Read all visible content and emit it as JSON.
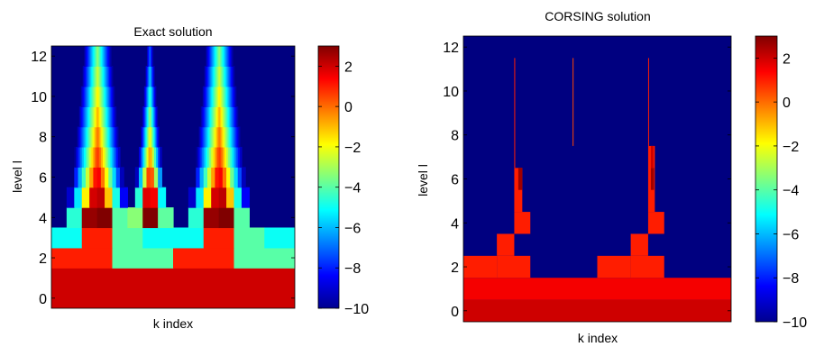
{
  "chart_data": [
    {
      "type": "heatmap",
      "title": "Exact solution",
      "xlabel": "k index",
      "ylabel": "level l",
      "ylim": [
        -0.5,
        12.5
      ],
      "yticks": [
        0,
        2,
        4,
        6,
        8,
        10,
        12
      ],
      "colorbar": {
        "range": [
          -10,
          3
        ],
        "ticks": [
          2,
          0,
          -2,
          -4,
          -6,
          -8,
          -10
        ],
        "tick_labels": [
          "2",
          "0",
          "−2",
          "−4",
          "−6",
          "−8",
          "−10"
        ]
      },
      "levels": [
        {
          "l": 0,
          "segments": [
            {
              "k0": 0,
              "k1": 1,
              "v": 2.0
            }
          ]
        },
        {
          "l": 1,
          "segments": [
            {
              "k0": 0,
              "k1": 1,
              "v": 2.0
            }
          ]
        },
        {
          "l": 2,
          "segments": [
            {
              "k0": 0,
              "k1": 0.25,
              "v": 1.0
            },
            {
              "k0": 0.25,
              "k1": 0.5,
              "v": -4.0
            },
            {
              "k0": 0.5,
              "k1": 0.75,
              "v": 1.0
            },
            {
              "k0": 0.75,
              "k1": 1,
              "v": -4.0
            }
          ]
        },
        {
          "l": 3,
          "segments": [
            {
              "k0": 0,
              "k1": 0.125,
              "v": -5.0
            },
            {
              "k0": 0.125,
              "k1": 0.25,
              "v": 1.0
            },
            {
              "k0": 0.25,
              "k1": 0.375,
              "v": -4.0
            },
            {
              "k0": 0.375,
              "k1": 0.5,
              "v": -5.0
            },
            {
              "k0": 0.5,
              "k1": 0.625,
              "v": -5.0
            },
            {
              "k0": 0.625,
              "k1": 0.75,
              "v": 1.0
            },
            {
              "k0": 0.75,
              "k1": 0.875,
              "v": -4.0
            },
            {
              "k0": 0.875,
              "k1": 1,
              "v": -5.0
            }
          ]
        }
      ],
      "peaks": [
        0.19,
        0.405,
        0.69
      ]
    },
    {
      "type": "heatmap",
      "title": "CORSING solution",
      "xlabel": "k index",
      "ylabel": "level l",
      "ylim": [
        -0.5,
        12.5
      ],
      "yticks": [
        0,
        2,
        4,
        6,
        8,
        10,
        12
      ],
      "colorbar": {
        "range": [
          -10,
          3
        ],
        "ticks": [
          2,
          0,
          -2,
          -4,
          -6,
          -8,
          -10
        ],
        "tick_labels": [
          "2",
          "0",
          "−2",
          "−4",
          "−6",
          "−8",
          "−10"
        ]
      },
      "background_value": -10,
      "cells": [
        {
          "l0": -0.5,
          "l1": 0.5,
          "k0": 0,
          "k1": 1,
          "v": 2.0
        },
        {
          "l0": 0.5,
          "l1": 1.5,
          "k0": 0,
          "k1": 1,
          "v": 1.5
        },
        {
          "l0": 1.5,
          "l1": 2.5,
          "k0": 0,
          "k1": 0.125,
          "v": 1.0
        },
        {
          "l0": 1.5,
          "l1": 2.5,
          "k0": 0.125,
          "k1": 0.25,
          "v": 1.0
        },
        {
          "l0": 2.5,
          "l1": 3.5,
          "k0": 0.125,
          "k1": 0.19,
          "v": 1.0
        },
        {
          "l0": 3.5,
          "l1": 4.5,
          "k0": 0.19,
          "k1": 0.25,
          "v": 1.0
        },
        {
          "l0": 4.5,
          "l1": 6.5,
          "k0": 0.19,
          "k1": 0.22,
          "v": 1.0
        },
        {
          "l0": 5.5,
          "l1": 6.5,
          "k0": 0.205,
          "k1": 0.22,
          "v": 2.6
        },
        {
          "l0": 6.5,
          "l1": 11.5,
          "k0": 0.19,
          "k1": 0.193,
          "v": 1.0
        },
        {
          "l0": 1.5,
          "l1": 2.5,
          "k0": 0.5,
          "k1": 0.625,
          "v": 1.0
        },
        {
          "l0": 1.5,
          "l1": 2.5,
          "k0": 0.625,
          "k1": 0.75,
          "v": 1.0
        },
        {
          "l0": 2.5,
          "l1": 3.5,
          "k0": 0.625,
          "k1": 0.69,
          "v": 1.0
        },
        {
          "l0": 3.5,
          "l1": 4.5,
          "k0": 0.69,
          "k1": 0.75,
          "v": 1.0
        },
        {
          "l0": 4.5,
          "l1": 7.5,
          "k0": 0.69,
          "k1": 0.715,
          "v": 1.0
        },
        {
          "l0": 5.5,
          "l1": 6.5,
          "k0": 0.7,
          "k1": 0.712,
          "v": 2.6
        },
        {
          "l0": 6.5,
          "l1": 7.5,
          "k0": 0.7,
          "k1": 0.71,
          "v": 2.0
        },
        {
          "l0": 7.5,
          "l1": 11.5,
          "k0": 0.69,
          "k1": 0.693,
          "v": 1.0
        },
        {
          "l0": 7.5,
          "l1": 11.5,
          "k0": 0.408,
          "k1": 0.411,
          "v": 0.5
        }
      ]
    }
  ]
}
